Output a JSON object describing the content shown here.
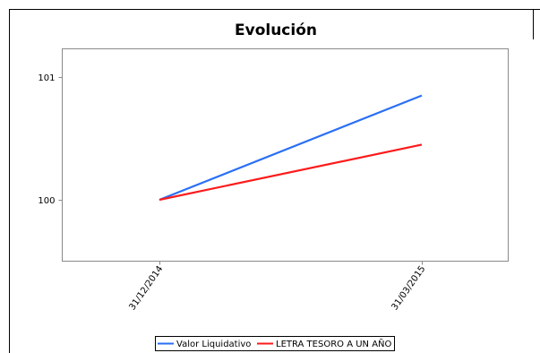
{
  "chart_data": {
    "type": "line",
    "title": "Evolución",
    "xlabel": "",
    "ylabel": "",
    "x": [
      "31/12/2014",
      "31/03/2015"
    ],
    "yticks": [
      100,
      101
    ],
    "ylim": [
      99.5,
      101.23
    ],
    "grid": false,
    "legend_position": "bottom",
    "series": [
      {
        "name": "Valor Liquidativo",
        "values": [
          100.0,
          100.85
        ],
        "color": "#2a6ff5"
      },
      {
        "name": "LETRA TESORO A UN AÑO",
        "values": [
          100.0,
          100.45
        ],
        "color": "#ff1a1a"
      }
    ]
  }
}
